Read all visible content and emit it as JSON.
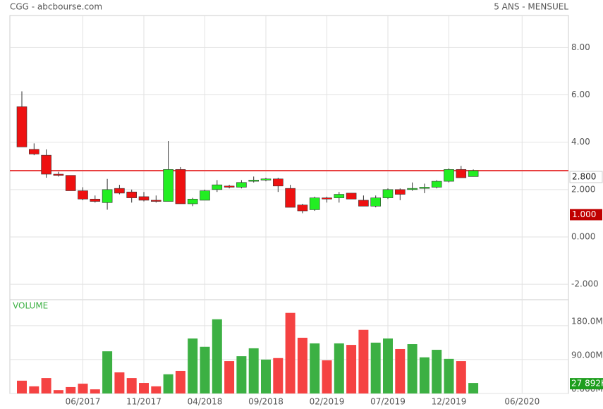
{
  "chart_data": {
    "type": "candlestick",
    "title": "CGG - abcbourse.com",
    "subtitle": "5 ANS - MENSUEL",
    "volume_label": "VOLUME",
    "categories": [
      null,
      null,
      null,
      null,
      null,
      "06/2017",
      null,
      null,
      null,
      null,
      "11/2017",
      null,
      null,
      null,
      null,
      "04/2018",
      null,
      null,
      null,
      null,
      "09/2018",
      null,
      null,
      null,
      null,
      "02/2019",
      null,
      null,
      null,
      null,
      "07/2019",
      null,
      null,
      null,
      null,
      "12/2019",
      null,
      null,
      null,
      null,
      null,
      "06/2020",
      null,
      null,
      null
    ],
    "open": [
      5.5,
      3.7,
      3.45,
      2.65,
      2.6,
      1.95,
      1.6,
      1.45,
      2.05,
      1.9,
      1.7,
      1.55,
      1.5,
      2.85,
      1.4,
      1.55,
      2.0,
      2.15,
      2.1,
      2.35,
      2.4,
      2.45,
      2.05,
      1.35,
      1.15,
      1.65,
      1.65,
      1.85,
      1.55,
      1.3,
      1.65,
      2.0,
      2.0,
      2.05,
      2.1,
      2.35,
      2.85,
      2.55,
      null,
      null,
      null,
      null,
      null,
      null,
      null
    ],
    "high": [
      6.15,
      3.95,
      3.7,
      2.75,
      2.6,
      2.1,
      1.75,
      2.45,
      2.2,
      2.0,
      1.9,
      1.75,
      4.05,
      2.95,
      1.65,
      2.0,
      2.4,
      2.2,
      2.4,
      2.55,
      2.5,
      2.5,
      2.2,
      1.4,
      1.7,
      1.7,
      1.9,
      1.85,
      1.75,
      1.75,
      2.05,
      2.05,
      2.3,
      2.25,
      2.4,
      2.9,
      3.0,
      2.85,
      null,
      null,
      null,
      null,
      null,
      null,
      null
    ],
    "low": [
      3.8,
      3.45,
      2.5,
      2.55,
      1.95,
      1.55,
      1.45,
      1.15,
      1.8,
      1.45,
      1.5,
      1.45,
      1.5,
      1.4,
      1.3,
      1.55,
      1.9,
      2.05,
      2.05,
      2.3,
      2.35,
      1.9,
      1.25,
      1.0,
      1.1,
      1.45,
      1.45,
      1.6,
      1.3,
      1.25,
      1.6,
      1.55,
      1.95,
      1.85,
      2.05,
      2.3,
      2.5,
      2.55,
      null,
      null,
      null,
      null,
      null,
      null,
      null
    ],
    "close": [
      3.8,
      3.5,
      2.65,
      2.6,
      1.95,
      1.6,
      1.5,
      2.0,
      1.85,
      1.65,
      1.55,
      1.5,
      2.85,
      1.4,
      1.6,
      1.95,
      2.2,
      2.1,
      2.3,
      2.4,
      2.45,
      2.15,
      1.25,
      1.1,
      1.65,
      1.6,
      1.8,
      1.6,
      1.3,
      1.65,
      2.0,
      1.8,
      2.05,
      2.1,
      2.35,
      2.85,
      2.5,
      2.8,
      null,
      null,
      null,
      null,
      null,
      null,
      null
    ],
    "volume": [
      34,
      19,
      41,
      9,
      17,
      26,
      11,
      112,
      56,
      41,
      28,
      19,
      51,
      60,
      146,
      124,
      197,
      86,
      99,
      120,
      90,
      94,
      214,
      148,
      133,
      88,
      133,
      129,
      169,
      135,
      146,
      118,
      131,
      96,
      116,
      92,
      86,
      27.892,
      null,
      null,
      null,
      null,
      null,
      null,
      null
    ],
    "last_volume_label": "27 892K",
    "up_color": "#22ee22",
    "down_color": "#ee1111",
    "volume_up_color": "#3cb043",
    "volume_down_color": "#f54242",
    "ylim": [
      -2.65,
      9.35
    ],
    "yticks": [
      {
        "value": -2,
        "label": "-2.000"
      },
      {
        "value": 0,
        "label": "0.000"
      },
      {
        "value": 2,
        "label": "2.000"
      },
      {
        "value": 4,
        "label": "4.00"
      },
      {
        "value": 6,
        "label": "6.00"
      },
      {
        "value": 8,
        "label": "8.00"
      }
    ],
    "volume_ylim": [
      0,
      249
    ],
    "volume_yticks": [
      {
        "value": 0,
        "label": "0.000M"
      },
      {
        "value": 90,
        "label": "90.00M"
      },
      {
        "value": 180,
        "label": "180.0M"
      }
    ],
    "price_line": {
      "value": 2.8,
      "label": "2.800",
      "color": "#e84040"
    },
    "marker": {
      "value": 1.0,
      "label": "1.000",
      "color": "#c00000"
    },
    "grid": true
  }
}
